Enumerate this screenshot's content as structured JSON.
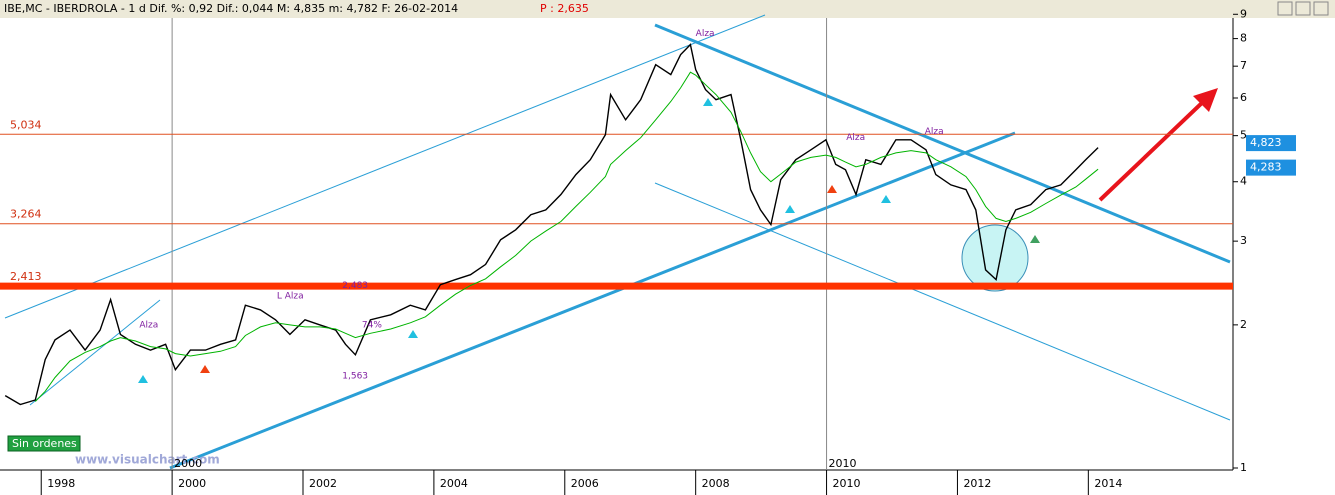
{
  "chart_data": {
    "type": "line",
    "title": "IBE,MC - IBERDROLA - 1 d Dif. %: 0,92 Dif.: 0,044 M: 4,835 m: 4,782 F: 26-02-2014",
    "title_extra": "P : 2,635",
    "log": true,
    "grid": false,
    "x": [
      1997.45,
      1997.68,
      1997.91,
      1998.06,
      1998.21,
      1998.44,
      1998.67,
      1998.9,
      1999.06,
      1999.21,
      1999.44,
      1999.67,
      1999.9,
      2000.05,
      2000.28,
      2000.51,
      2000.74,
      2000.97,
      2001.12,
      2001.35,
      2001.58,
      2001.8,
      2002.03,
      2002.26,
      2002.5,
      2002.65,
      2002.8,
      2003.03,
      2003.34,
      2003.64,
      2003.87,
      2004.1,
      2004.33,
      2004.56,
      2004.79,
      2005.02,
      2005.25,
      2005.48,
      2005.71,
      2005.94,
      2006.17,
      2006.39,
      2006.62,
      2006.7,
      2006.93,
      2007.16,
      2007.39,
      2007.62,
      2007.77,
      2007.92,
      2008.0,
      2008.15,
      2008.31,
      2008.54,
      2008.69,
      2008.84,
      2008.99,
      2009.15,
      2009.3,
      2009.53,
      2009.76,
      2009.99,
      2010.14,
      2010.29,
      2010.45,
      2010.6,
      2010.83,
      2011.06,
      2011.29,
      2011.52,
      2011.67,
      2011.9,
      2012.13,
      2012.28,
      2012.43,
      2012.59,
      2012.74,
      2012.89,
      2013.12,
      2013.35,
      2013.58,
      2013.81,
      2013.96,
      2014.15
    ],
    "series": [
      {
        "color": "#000000",
        "values": [
          1.42,
          1.36,
          1.39,
          1.69,
          1.86,
          1.95,
          1.77,
          1.95,
          2.26,
          1.91,
          1.82,
          1.77,
          1.82,
          1.61,
          1.77,
          1.77,
          1.82,
          1.86,
          2.2,
          2.15,
          2.05,
          1.91,
          2.05,
          2.0,
          1.95,
          1.82,
          1.73,
          2.05,
          2.1,
          2.2,
          2.15,
          2.43,
          2.49,
          2.55,
          2.68,
          3.02,
          3.17,
          3.41,
          3.49,
          3.76,
          4.14,
          4.45,
          5.02,
          6.1,
          5.4,
          5.95,
          7.05,
          6.72,
          7.4,
          7.77,
          6.88,
          6.25,
          5.95,
          6.1,
          4.9,
          3.85,
          3.49,
          3.25,
          4.04,
          4.45,
          4.67,
          4.9,
          4.35,
          4.24,
          3.76,
          4.45,
          4.35,
          4.9,
          4.9,
          4.67,
          4.14,
          3.94,
          3.85,
          3.49,
          2.61,
          2.49,
          3.17,
          3.49,
          3.58,
          3.85,
          3.94,
          4.24,
          4.45,
          4.72
        ]
      },
      {
        "color": "#00b400",
        "values": [
          null,
          null,
          1.38,
          1.45,
          1.55,
          1.68,
          1.75,
          1.8,
          1.85,
          1.88,
          1.85,
          1.8,
          1.78,
          1.74,
          1.72,
          1.74,
          1.76,
          1.8,
          1.9,
          1.98,
          2.02,
          2.0,
          1.98,
          1.98,
          1.96,
          1.92,
          1.88,
          1.92,
          1.96,
          2.02,
          2.08,
          2.2,
          2.32,
          2.42,
          2.5,
          2.65,
          2.8,
          3.0,
          3.15,
          3.3,
          3.55,
          3.8,
          4.1,
          4.35,
          4.65,
          4.95,
          5.4,
          5.9,
          6.3,
          6.8,
          6.7,
          6.4,
          6.1,
          5.6,
          5.1,
          4.6,
          4.2,
          4.0,
          4.15,
          4.4,
          4.5,
          4.55,
          4.5,
          4.4,
          4.3,
          4.35,
          4.5,
          4.6,
          4.65,
          4.6,
          4.45,
          4.3,
          4.1,
          3.85,
          3.55,
          3.35,
          3.3,
          3.35,
          3.45,
          3.6,
          3.75,
          3.9,
          4.05,
          4.25
        ]
      }
    ],
    "xlim": [
      1997.37,
      2016.18
    ],
    "xticks": [
      1998,
      2000,
      2002,
      2004,
      2006,
      2008,
      2010,
      2012,
      2014
    ],
    "dividers": [
      2000,
      2010
    ],
    "ylim": [
      1,
      9.1
    ],
    "yticks": [
      1,
      2,
      3,
      4,
      5,
      6,
      7,
      8,
      9
    ],
    "levels": [
      {
        "value": 5.034,
        "label": "5,034",
        "color": "#e05020"
      },
      {
        "value": 3.264,
        "label": "3,264",
        "color": "#e05020"
      },
      {
        "value": 2.413,
        "label": "2,413",
        "color": "#ff3300"
      }
    ],
    "price_tags": [
      {
        "value": 4.823,
        "label": "4,823"
      },
      {
        "value": 4.283,
        "label": "4,283"
      }
    ],
    "annotations": [
      {
        "text": "Alza",
        "x": 2008.0,
        "y": 8.2
      },
      {
        "text": "Alza",
        "x": 2010.3,
        "y": 4.95
      },
      {
        "text": "Alza",
        "x": 2011.5,
        "y": 5.1
      },
      {
        "text": "L Alza",
        "x": 2001.6,
        "y": 2.3
      },
      {
        "text": "Alza",
        "x": 1999.5,
        "y": 2.0
      },
      {
        "text": "2,483",
        "x": 2002.6,
        "y": 2.42
      },
      {
        "text": "1,563",
        "x": 2002.6,
        "y": 1.56
      },
      {
        "text": "74%",
        "x": 2002.9,
        "y": 2.0
      }
    ],
    "status": "Sin ordenes",
    "watermark": "www.visualchart.com"
  }
}
